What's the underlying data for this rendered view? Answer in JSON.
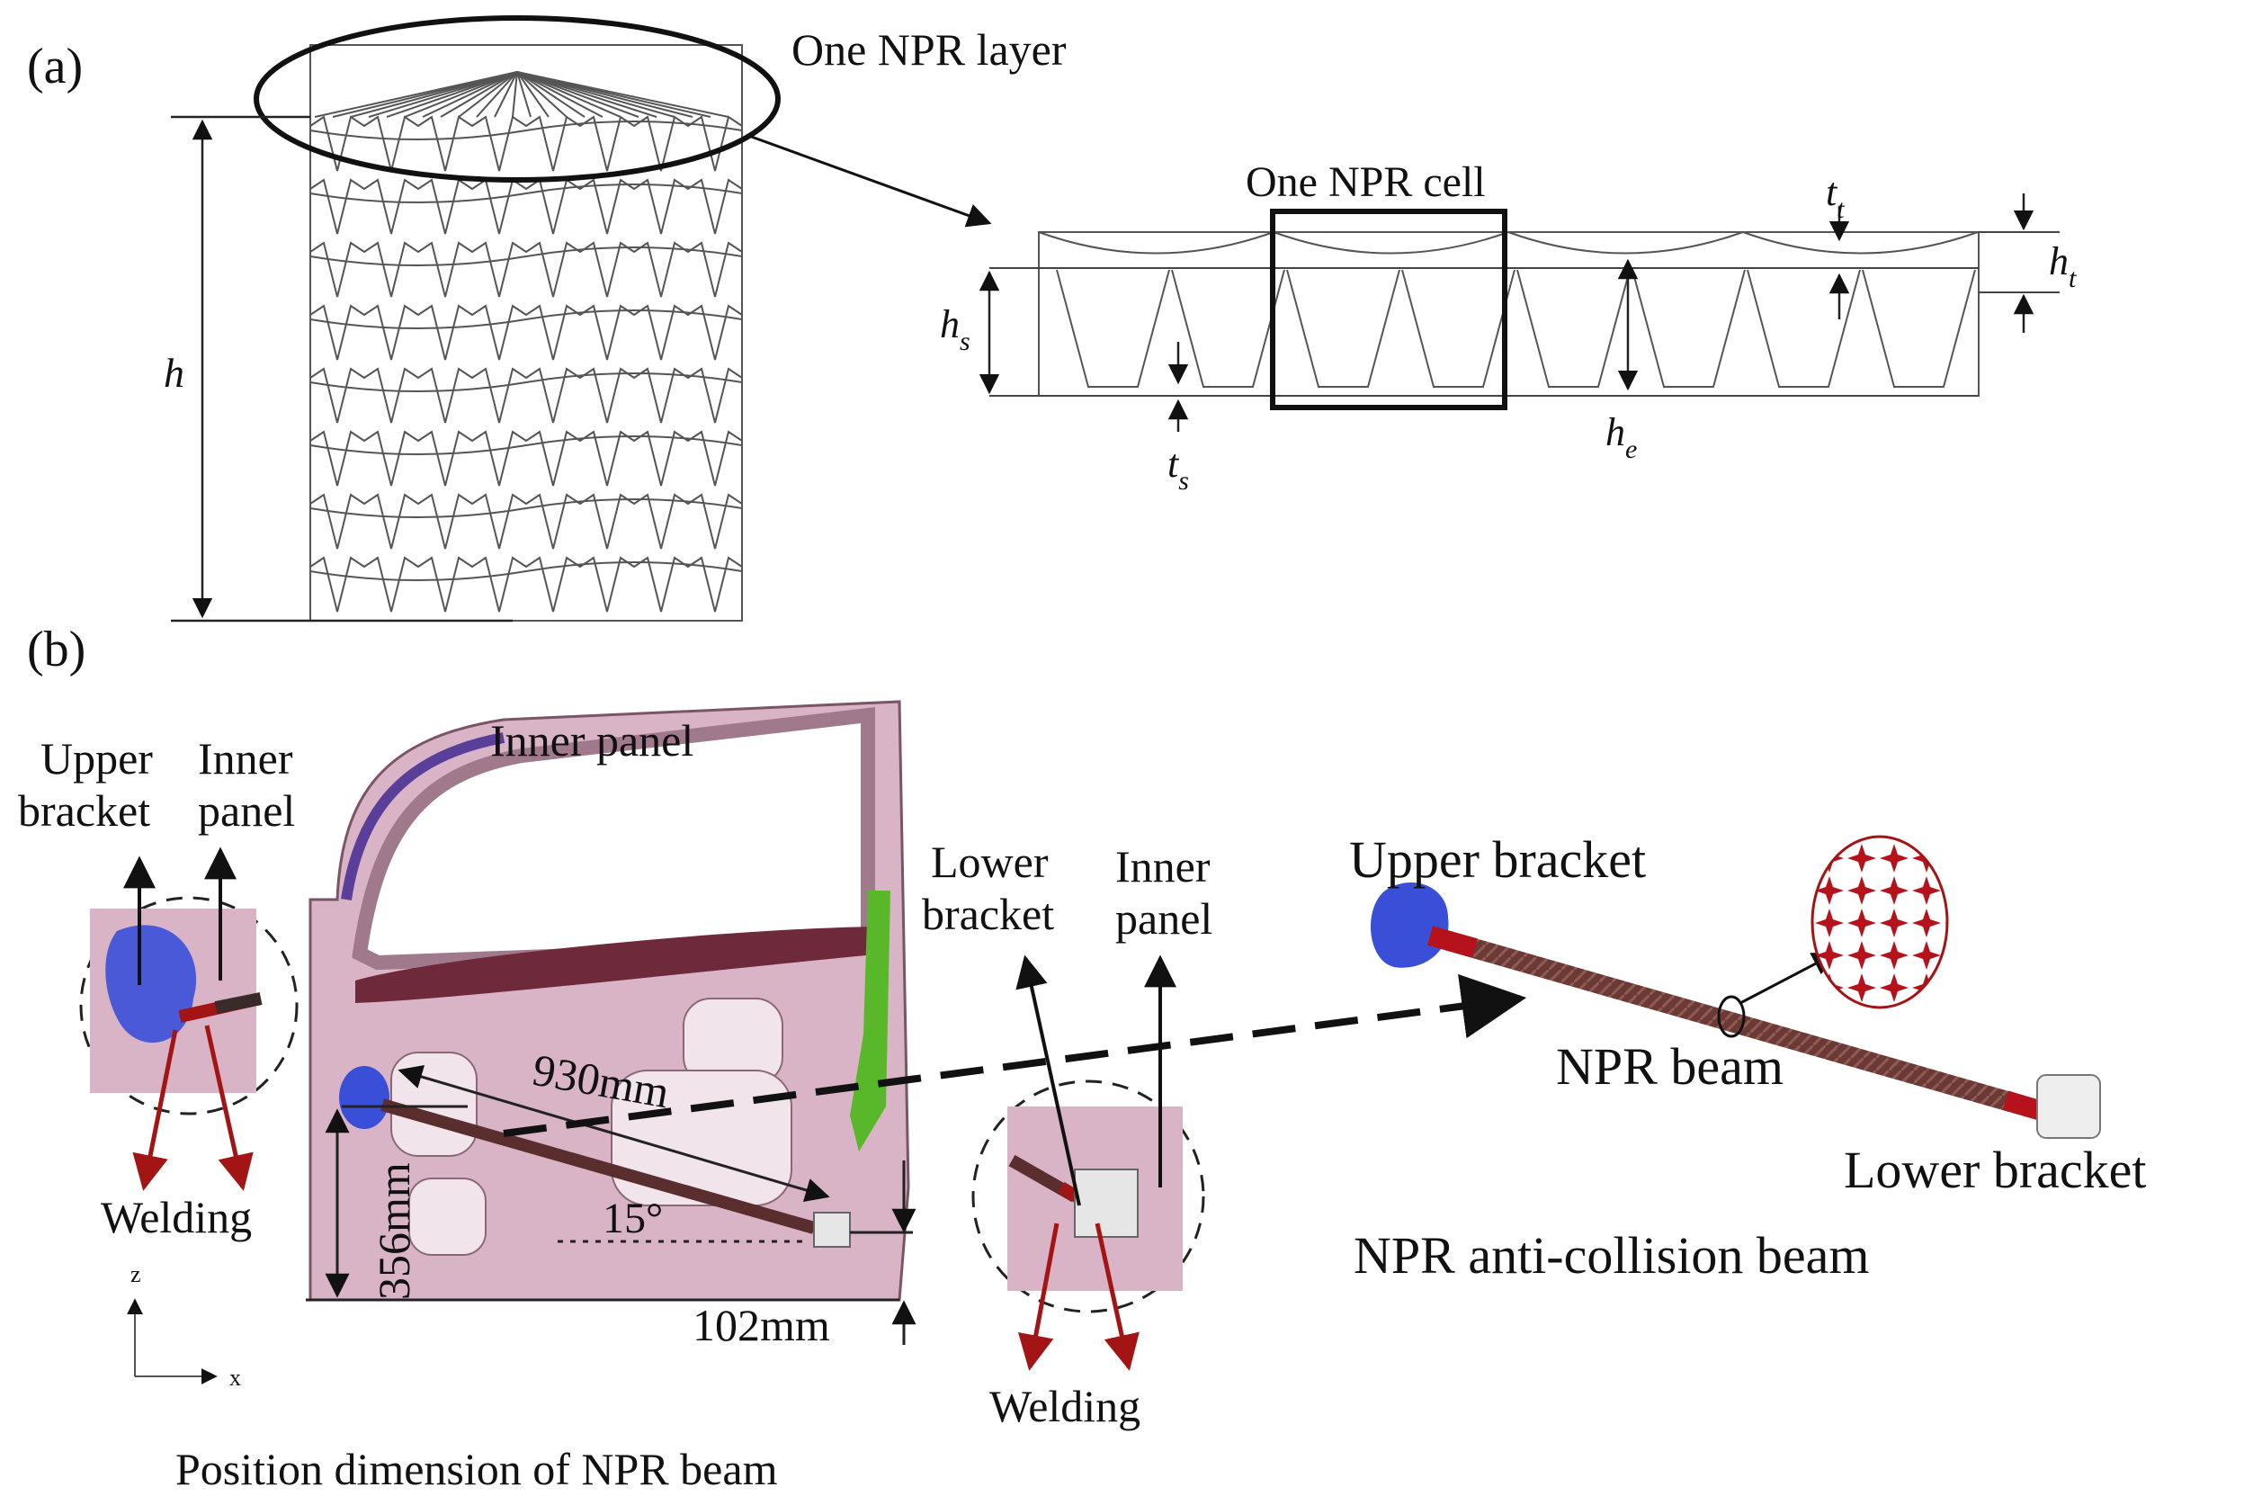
{
  "panel_a": {
    "tag": "(a)",
    "callout_layer": "One NPR layer",
    "callout_cell": "One NPR cell",
    "dim_h": "h",
    "dim_hs": "h",
    "dim_hs_sub": "s",
    "dim_ts": "t",
    "dim_ts_sub": "s",
    "dim_he": "h",
    "dim_he_sub": "e",
    "dim_tt": "t",
    "dim_tt_sub": "t",
    "dim_ht": "h",
    "dim_ht_sub": "t"
  },
  "panel_b": {
    "tag": "(b)",
    "inner_panel_top": "Inner panel",
    "left_detail": {
      "upper_l1": "Upper",
      "upper_l2": "bracket",
      "inner_l1": "Inner",
      "inner_l2": "panel",
      "welding": "Welding"
    },
    "right_detail": {
      "lower_l1": "Lower",
      "lower_l2": "bracket",
      "inner_l1": "Inner",
      "inner_l2": "panel",
      "welding": "Welding"
    },
    "dims": {
      "length": "930mm",
      "height": "356mm",
      "angle": "15°",
      "offset": "102mm"
    },
    "axes": {
      "z": "z",
      "x": "x"
    },
    "caption": "Position dimension of NPR beam",
    "beam": {
      "upper": "Upper bracket",
      "npr": "NPR beam",
      "lower": "Lower bracket",
      "title": "NPR anti-collision beam"
    }
  },
  "colors": {
    "door": "#d9b3c6",
    "door_dark": "#6e2a3a",
    "bracket_blue": "#3a4fd8",
    "weld_red": "#a31515",
    "trim_green": "#58b829",
    "beam_brown": "#6b3a36"
  }
}
